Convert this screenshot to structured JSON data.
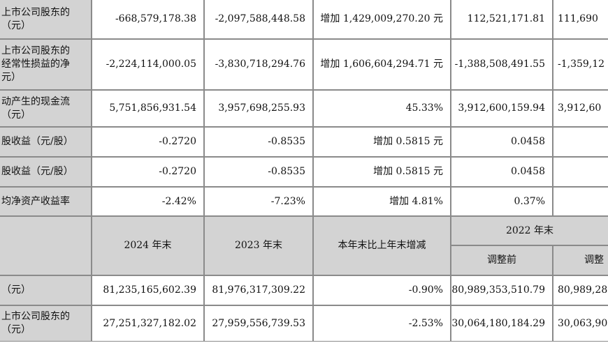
{
  "top_rows": [
    {
      "label": [
        "上市公司股东的",
        "（元）"
      ],
      "c2024": "-668,579,178.38",
      "c2023": "-2,097,588,448.58",
      "change": "增加 1,429,009,270.20 元",
      "c2022a": "112,521,171.81",
      "c2022b": "111,690"
    },
    {
      "label": [
        "上市公司股东的",
        "经常性损益的净",
        "元）"
      ],
      "c2024": "-2,224,114,000.05",
      "c2023": "-3,830,718,294.76",
      "change": "增加 1,606,604,294.71 元",
      "c2022a": "-1,388,508,491.55",
      "c2022b": "-1,359,12"
    },
    {
      "label": [
        "动产生的现金流",
        "（元）"
      ],
      "c2024": "5,751,856,931.54",
      "c2023": "3,957,698,255.93",
      "change": "45.33%",
      "c2022a": "3,912,600,159.94",
      "c2022b": "3,912,60"
    },
    {
      "label": [
        "股收益（元/股）"
      ],
      "c2024": "-0.2720",
      "c2023": "-0.8535",
      "change": "增加 0.5815 元",
      "c2022a": "0.0458",
      "c2022b": ""
    },
    {
      "label": [
        "股收益（元/股）"
      ],
      "c2024": "-0.2720",
      "c2023": "-0.8535",
      "change": "增加 0.5815 元",
      "c2022a": "0.0458",
      "c2022b": ""
    },
    {
      "label": [
        "均净资产收益率"
      ],
      "c2024": "-2.42%",
      "c2023": "-7.23%",
      "change": "增加 4.81%",
      "c2022a": "0.37%",
      "c2022b": ""
    }
  ],
  "header": {
    "y2024": "2024 年末",
    "y2023": "2023 年末",
    "change": "本年末比上年末增减",
    "y2022": "2022 年末",
    "before": "调整前",
    "after": "调整"
  },
  "bottom_rows": [
    {
      "label": [
        "（元）"
      ],
      "c2024": "81,235,165,602.39",
      "c2023": "81,976,317,309.22",
      "change": "-0.90%",
      "c2022a": "80,989,353,510.79",
      "c2022b": "80,989,28"
    },
    {
      "label": [
        "上市公司股东的",
        "（元）"
      ],
      "c2024": "27,251,327,182.02",
      "c2023": "27,959,556,739.53",
      "change": "-2.53%",
      "c2022a": "30,064,180,184.29",
      "c2022b": "30,063,90"
    }
  ]
}
